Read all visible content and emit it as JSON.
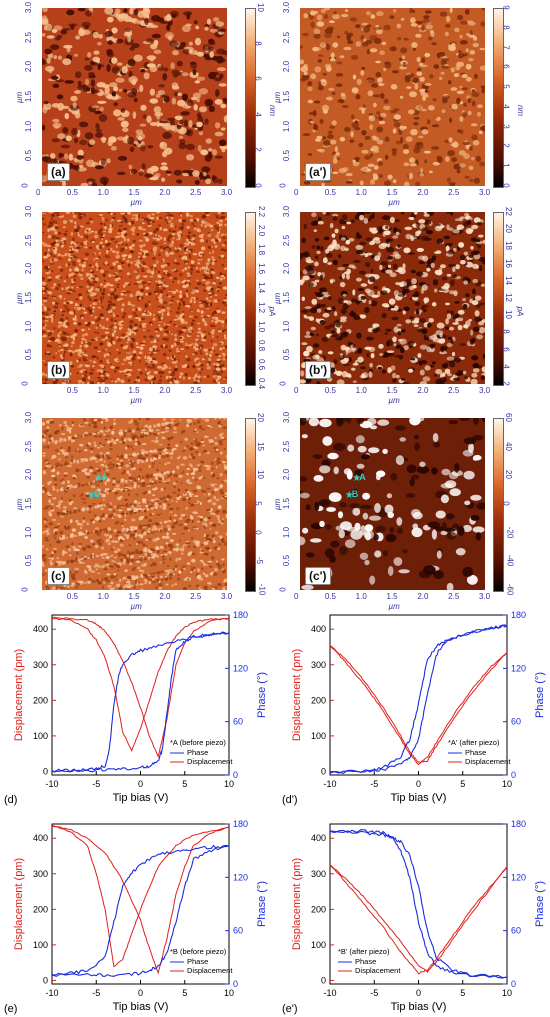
{
  "afm_panels": [
    {
      "id": "a",
      "label": "(a)",
      "cbar_unit": "nm",
      "cbar_ticks": [
        "0",
        "2",
        "4",
        "6",
        "8",
        "10"
      ]
    },
    {
      "id": "a2",
      "label": "(a')",
      "cbar_unit": "nm",
      "cbar_ticks": [
        "0",
        "1",
        "2",
        "3",
        "4",
        "5",
        "6",
        "7",
        "8",
        "9"
      ]
    },
    {
      "id": "b",
      "label": "(b)",
      "cbar_unit": "pA",
      "cbar_ticks": [
        "0.4",
        "0.6",
        "0.8",
        "1.0",
        "1.2",
        "1.4",
        "1.6",
        "1.8",
        "2.0",
        "2.2"
      ]
    },
    {
      "id": "b2",
      "label": "(b')",
      "cbar_unit": "pA",
      "cbar_ticks": [
        "2",
        "4",
        "6",
        "8",
        "10",
        "12",
        "14",
        "16",
        "18",
        "20",
        "22"
      ]
    },
    {
      "id": "c",
      "label": "(c)",
      "cbar_unit": "",
      "cbar_ticks": [
        "-10",
        "-5",
        "0",
        "5",
        "10",
        "15",
        "20"
      ]
    },
    {
      "id": "c2",
      "label": "(c')",
      "cbar_unit": "",
      "cbar_ticks": [
        "-60",
        "-40",
        "-20",
        "0",
        "20",
        "40",
        "60"
      ]
    }
  ],
  "afm_axis": {
    "unit": "µm",
    "yticks": [
      "0",
      "0.5",
      "1.0",
      "1.5",
      "2.0",
      "2.5",
      "3.0"
    ],
    "xticks_full": [
      "0",
      "0.5",
      "1.0",
      "1.5",
      "2.0",
      "2.5",
      "3.0"
    ],
    "xticks_partial": [
      "0.5",
      "1.0",
      "1.5",
      "2.0",
      "2.5",
      "3.0"
    ]
  },
  "marker_labels": {
    "A": "A",
    "B": "B"
  },
  "chart_data": [
    {
      "id": "d",
      "panel_label": "(d)",
      "type": "line",
      "xlabel": "Tip bias (V)",
      "ylabel_left": "Displacement (pm)",
      "ylabel_right": "Phase (°)",
      "xlim": [
        -10,
        10
      ],
      "xticks": [
        -10,
        -5,
        0,
        5,
        10
      ],
      "ylim_left": [
        -10,
        440
      ],
      "yticks_left": [
        0,
        100,
        200,
        300,
        400
      ],
      "ylim_right": [
        0,
        180
      ],
      "yticks_right": [
        0,
        60,
        120,
        180
      ],
      "legend_title": "*A (before piezo)",
      "legend": [
        "Phase",
        "Displacement"
      ],
      "phase_branches": [
        {
          "x": [
            -10,
            -8,
            -6,
            -5,
            -4,
            -3.5,
            -3,
            -2.5,
            -2,
            -1,
            0,
            2,
            4,
            6,
            8,
            10
          ],
          "y": [
            5,
            5,
            6,
            8,
            10,
            30,
            80,
            110,
            125,
            135,
            140,
            145,
            150,
            155,
            158,
            160
          ]
        },
        {
          "x": [
            10,
            8,
            6,
            5,
            4,
            3.5,
            3,
            2.5,
            2,
            1,
            0,
            -2,
            -4,
            -6,
            -8,
            -10
          ],
          "y": [
            160,
            158,
            156,
            150,
            140,
            110,
            70,
            30,
            15,
            10,
            8,
            7,
            6,
            5,
            5,
            5
          ]
        }
      ],
      "disp_branches": [
        {
          "x": [
            -10,
            -8,
            -6,
            -5,
            -4,
            -3,
            -2,
            -1,
            0,
            1,
            2,
            3,
            4,
            5,
            6,
            8,
            10
          ],
          "y": [
            430,
            428,
            400,
            370,
            320,
            240,
            110,
            60,
            120,
            200,
            280,
            340,
            380,
            405,
            420,
            428,
            430
          ]
        },
        {
          "x": [
            10,
            8,
            6,
            5,
            4,
            3,
            2,
            1,
            0,
            -1,
            -2,
            -3,
            -4,
            -5,
            -6,
            -8,
            -10
          ],
          "y": [
            430,
            425,
            395,
            360,
            300,
            150,
            40,
            100,
            180,
            250,
            310,
            360,
            395,
            415,
            425,
            430,
            432
          ]
        }
      ]
    },
    {
      "id": "d2",
      "panel_label": "(d')",
      "type": "line",
      "xlabel": "Tip bias (V)",
      "ylabel_left": "Displacement (pm)",
      "ylabel_right": "Phase (°)",
      "xlim": [
        -10,
        10
      ],
      "xticks": [
        -10,
        -5,
        0,
        5,
        10
      ],
      "ylim_left": [
        -10,
        440
      ],
      "yticks_left": [
        0,
        100,
        200,
        300,
        400
      ],
      "ylim_right": [
        0,
        180
      ],
      "yticks_right": [
        0,
        60,
        120,
        180
      ],
      "legend_title": "*A' (after piezo)",
      "legend": [
        "Phase",
        "Displacement"
      ],
      "phase_branches": [
        {
          "x": [
            -10,
            -6,
            -4,
            -2,
            -1,
            0,
            1,
            2,
            3,
            5,
            8,
            10
          ],
          "y": [
            3,
            4,
            8,
            20,
            40,
            80,
            130,
            145,
            150,
            158,
            165,
            168
          ]
        },
        {
          "x": [
            10,
            8,
            5,
            3,
            2,
            1,
            0,
            -1,
            -2,
            -4,
            -6,
            -10
          ],
          "y": [
            168,
            165,
            158,
            150,
            135,
            90,
            40,
            20,
            12,
            6,
            4,
            3
          ]
        }
      ],
      "disp_branches": [
        {
          "x": [
            -10,
            -8,
            -6,
            -4,
            -2,
            -1,
            0,
            1,
            2,
            4,
            6,
            8,
            10
          ],
          "y": [
            355,
            300,
            240,
            170,
            90,
            50,
            20,
            40,
            80,
            160,
            230,
            290,
            335
          ]
        },
        {
          "x": [
            10,
            8,
            6,
            4,
            2,
            1,
            0,
            -1,
            -2,
            -4,
            -6,
            -8,
            -10
          ],
          "y": [
            335,
            280,
            220,
            150,
            70,
            30,
            25,
            55,
            100,
            180,
            250,
            310,
            355
          ]
        }
      ]
    },
    {
      "id": "e",
      "panel_label": "(e)",
      "type": "line",
      "xlabel": "Tip bias (V)",
      "ylabel_left": "Displacement (pm)",
      "ylabel_right": "Phase (°)",
      "xlim": [
        -10,
        10
      ],
      "xticks": [
        -10,
        -5,
        0,
        5,
        10
      ],
      "ylim_left": [
        -10,
        440
      ],
      "yticks_left": [
        0,
        100,
        200,
        300,
        400
      ],
      "ylim_right": [
        0,
        180
      ],
      "yticks_right": [
        0,
        60,
        120,
        180
      ],
      "legend_title": "*B (before piezo)",
      "legend": [
        "Phase",
        "Displacement"
      ],
      "phase_branches": [
        {
          "x": [
            -10,
            -8,
            -6,
            -4,
            -3,
            -2,
            -1,
            0,
            2,
            4,
            6,
            8,
            10
          ],
          "y": [
            10,
            12,
            15,
            30,
            70,
            110,
            125,
            135,
            145,
            150,
            152,
            154,
            155
          ]
        },
        {
          "x": [
            10,
            8,
            6,
            5,
            4,
            3,
            2,
            1,
            0,
            -2,
            -4,
            -6,
            -10
          ],
          "y": [
            155,
            150,
            140,
            110,
            70,
            35,
            20,
            15,
            12,
            10,
            10,
            10,
            10
          ]
        }
      ],
      "disp_branches": [
        {
          "x": [
            -10,
            -8,
            -6,
            -5,
            -4,
            -3,
            -2,
            -1,
            0,
            1,
            2,
            4,
            6,
            8,
            10
          ],
          "y": [
            435,
            420,
            380,
            300,
            200,
            40,
            60,
            130,
            200,
            260,
            320,
            380,
            410,
            420,
            430
          ]
        },
        {
          "x": [
            10,
            8,
            6,
            5,
            4,
            3,
            2,
            1,
            0,
            -2,
            -4,
            -6,
            -8,
            -10
          ],
          "y": [
            430,
            415,
            380,
            320,
            240,
            120,
            20,
            90,
            170,
            280,
            360,
            400,
            425,
            435
          ]
        }
      ]
    },
    {
      "id": "e2",
      "panel_label": "(e')",
      "type": "line",
      "xlabel": "Tip bias (V)",
      "ylabel_left": "Displacement (pm)",
      "ylabel_right": "Phase (°)",
      "xlim": [
        -10,
        10
      ],
      "xticks": [
        -10,
        -5,
        0,
        5,
        10
      ],
      "ylim_left": [
        -10,
        440
      ],
      "yticks_left": [
        0,
        100,
        200,
        300,
        400
      ],
      "ylim_right": [
        0,
        180
      ],
      "yticks_right": [
        0,
        60,
        120,
        180
      ],
      "legend_title": "*B' (after piezo)",
      "legend": [
        "Phase",
        "Displacement"
      ],
      "phase_branches": [
        {
          "x": [
            -10,
            -6,
            -4,
            -3,
            -2,
            -1,
            0,
            1,
            2,
            4,
            6,
            10
          ],
          "y": [
            172,
            172,
            170,
            165,
            150,
            120,
            70,
            35,
            20,
            12,
            10,
            8
          ]
        },
        {
          "x": [
            10,
            6,
            4,
            2,
            1,
            0,
            -1,
            -2,
            -3,
            -4,
            -6,
            -10
          ],
          "y": [
            8,
            10,
            15,
            30,
            60,
            110,
            145,
            160,
            165,
            168,
            170,
            172
          ]
        }
      ],
      "disp_branches": [
        {
          "x": [
            -10,
            -8,
            -6,
            -4,
            -2,
            0,
            1,
            2,
            4,
            6,
            8,
            10
          ],
          "y": [
            325,
            270,
            210,
            150,
            80,
            20,
            30,
            60,
            130,
            200,
            260,
            320
          ]
        },
        {
          "x": [
            10,
            8,
            6,
            4,
            2,
            1,
            0,
            -2,
            -4,
            -6,
            -8,
            -10
          ],
          "y": [
            320,
            255,
            190,
            120,
            50,
            25,
            40,
            110,
            170,
            230,
            280,
            325
          ]
        }
      ]
    }
  ]
}
